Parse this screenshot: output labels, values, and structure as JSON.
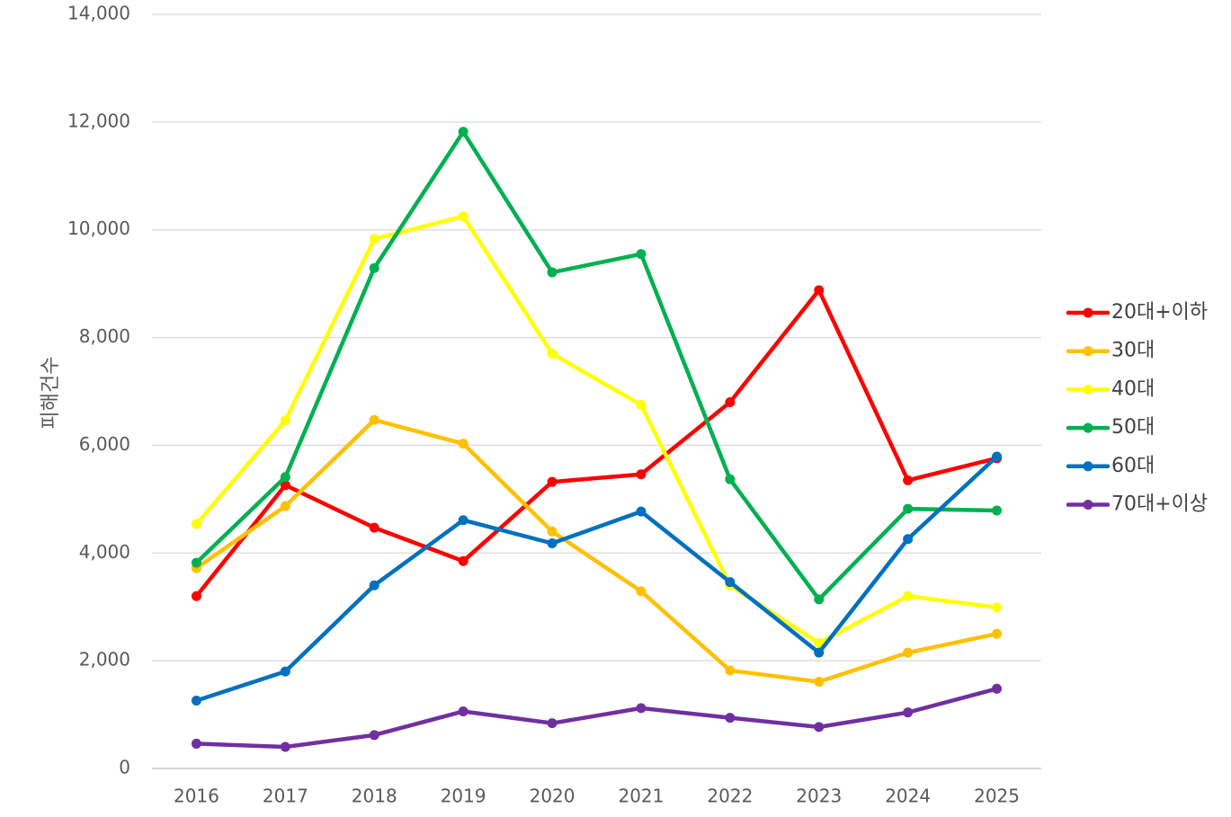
{
  "chart_data": {
    "type": "line",
    "title": "",
    "xlabel": "",
    "ylabel": "피해건수",
    "ylim": [
      0,
      14000
    ],
    "yticks": [
      0,
      2000,
      4000,
      6000,
      8000,
      10000,
      12000,
      14000
    ],
    "ytick_labels": [
      "0",
      "2,000",
      "4,000",
      "6,000",
      "8,000",
      "10,000",
      "12,000",
      "14,000"
    ],
    "categories": [
      "2016",
      "2017",
      "2018",
      "2019",
      "2020",
      "2021",
      "2022",
      "2023",
      "2024",
      "2025"
    ],
    "grid": "horizontal",
    "legend_position": "right",
    "series": [
      {
        "name": "20대+이하",
        "color": "#ff0000",
        "values": [
          3200,
          5260,
          4470,
          3850,
          5320,
          5460,
          6800,
          8880,
          5350,
          5760
        ]
      },
      {
        "name": "30대",
        "color": "#ffc000",
        "values": [
          3720,
          4870,
          6470,
          6030,
          4400,
          3290,
          1820,
          1610,
          2150,
          2500
        ]
      },
      {
        "name": "40대",
        "color": "#ffff00",
        "values": [
          4540,
          6460,
          9830,
          10250,
          7700,
          6750,
          3400,
          2330,
          3200,
          2990
        ]
      },
      {
        "name": "50대",
        "color": "#00b050",
        "values": [
          3820,
          5410,
          9290,
          11820,
          9210,
          9550,
          5370,
          3140,
          4820,
          4790
        ]
      },
      {
        "name": "60대",
        "color": "#0070c0",
        "values": [
          1260,
          1800,
          3400,
          4610,
          4180,
          4770,
          3460,
          2150,
          4260,
          5790
        ]
      },
      {
        "name": "70대+이상",
        "color": "#7030a0",
        "values": [
          460,
          400,
          620,
          1060,
          840,
          1120,
          940,
          770,
          1040,
          1480
        ]
      }
    ]
  }
}
